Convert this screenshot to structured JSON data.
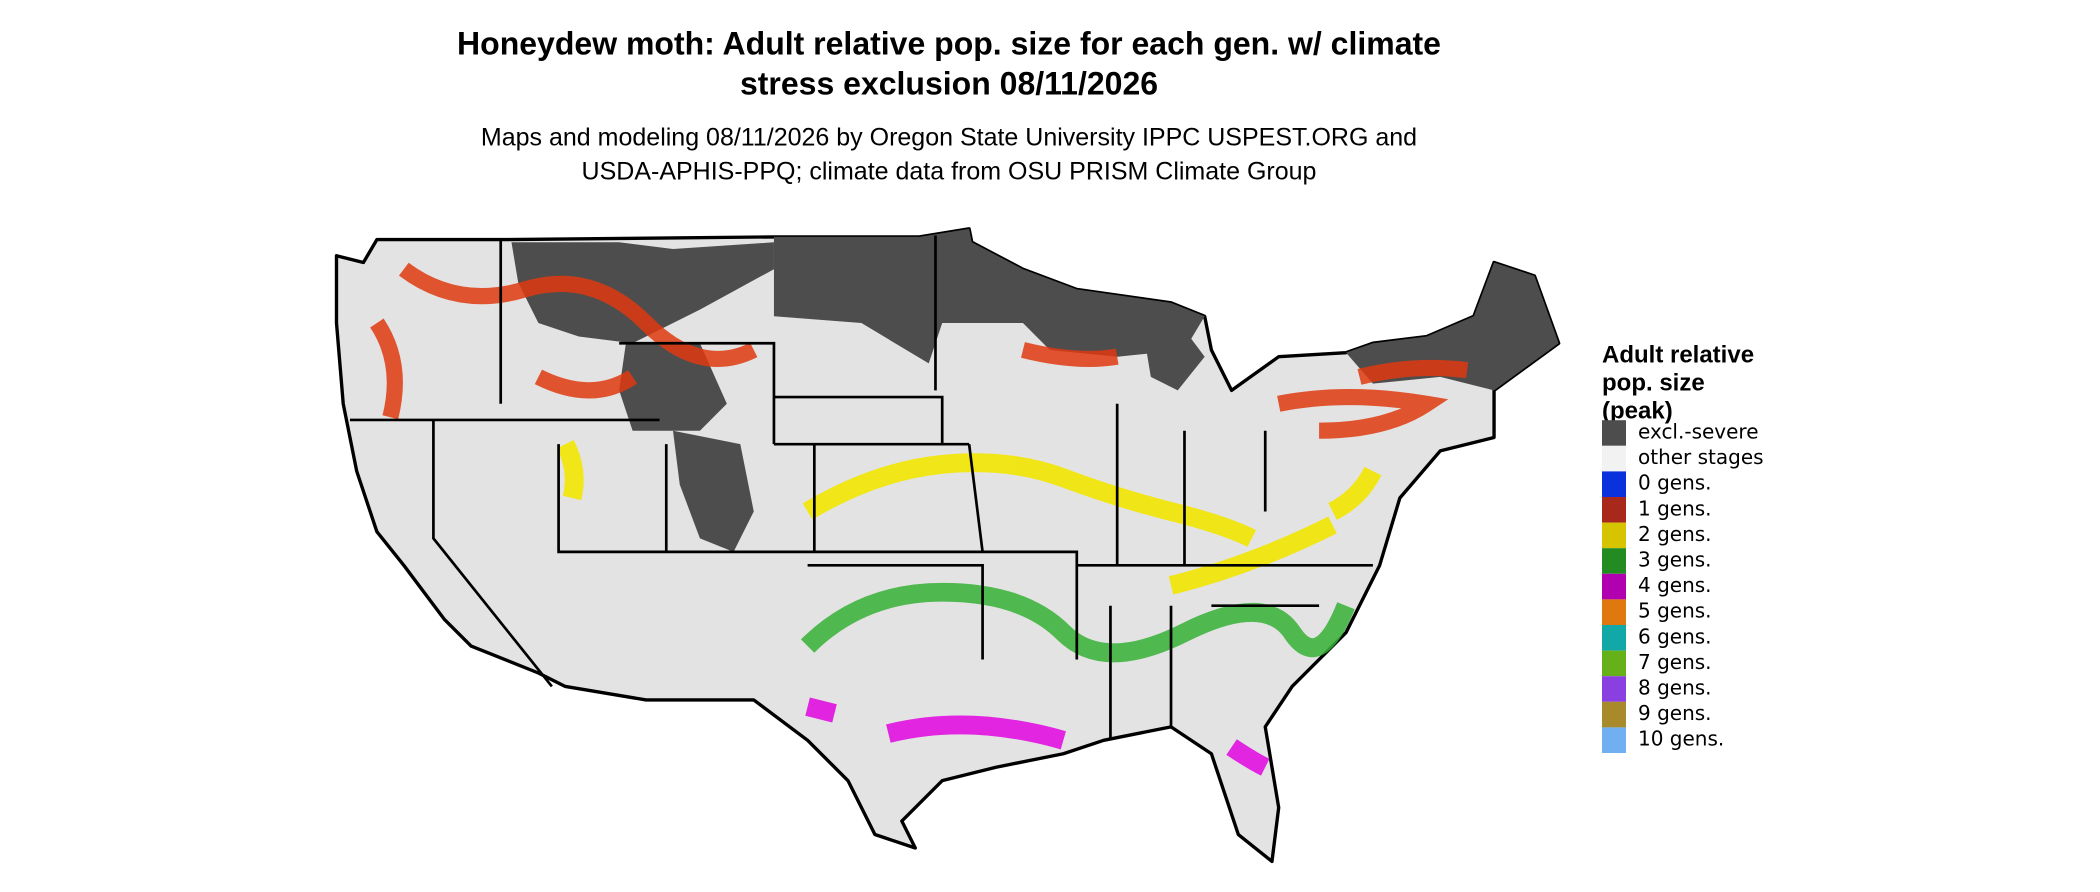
{
  "header": {
    "title": [
      "Honeydew moth: Adult relative pop. size for each gen. w/ climate",
      "stress exclusion 08/11/2026"
    ],
    "subtitle": [
      "Maps and modeling 08/11/2026 by Oregon State University IPPC USPEST.ORG and",
      "USDA-APHIS-PPQ; climate data from OSU PRISM Climate Group"
    ]
  },
  "legend": {
    "title": [
      "Adult relative",
      "pop. size",
      "(peak)"
    ],
    "items": [
      {
        "label": "excl.-severe",
        "color": "#4d4d4d"
      },
      {
        "label": "other stages",
        "color": "#f2f2f2"
      },
      {
        "label": "0 gens.",
        "color": "#0a32dc"
      },
      {
        "label": "1 gens.",
        "color": "#a8281c"
      },
      {
        "label": "2 gens.",
        "color": "#d6c400"
      },
      {
        "label": "3 gens.",
        "color": "#228b22"
      },
      {
        "label": "4 gens.",
        "color": "#b000b0"
      },
      {
        "label": "5 gens.",
        "color": "#e07810"
      },
      {
        "label": "6 gens.",
        "color": "#12a8a8"
      },
      {
        "label": "7 gens.",
        "color": "#66b01a"
      },
      {
        "label": "8 gens.",
        "color": "#8a40e0"
      },
      {
        "label": "9 gens.",
        "color": "#a88a2a"
      },
      {
        "label": "10 gens.",
        "color": "#70b0f0"
      }
    ]
  }
}
